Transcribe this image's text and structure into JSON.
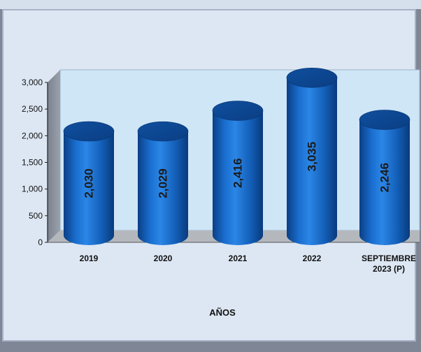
{
  "chart_data": {
    "type": "bar",
    "categories": [
      [
        "2019"
      ],
      [
        "2020"
      ],
      [
        "2021"
      ],
      [
        "2022"
      ],
      [
        "SEPTIEMBRE",
        "2023 (P)"
      ]
    ],
    "values": [
      2030,
      2029,
      2416,
      3035,
      2246
    ],
    "data_labels": [
      "2,030",
      "2,029",
      "2,416",
      "3,035",
      "2,246"
    ],
    "y_ticks": [
      "0",
      "500",
      "1,000",
      "1,500",
      "2,000",
      "2,500",
      "3,000"
    ],
    "ylim": [
      0,
      3000
    ],
    "xlabel": "AÑOS",
    "ylabel": "",
    "title": "",
    "style": "3d-cylinder",
    "bar_color": "#1565c0",
    "wall_color": "#cfe6f7",
    "floor_color": "#b4b8bd"
  }
}
